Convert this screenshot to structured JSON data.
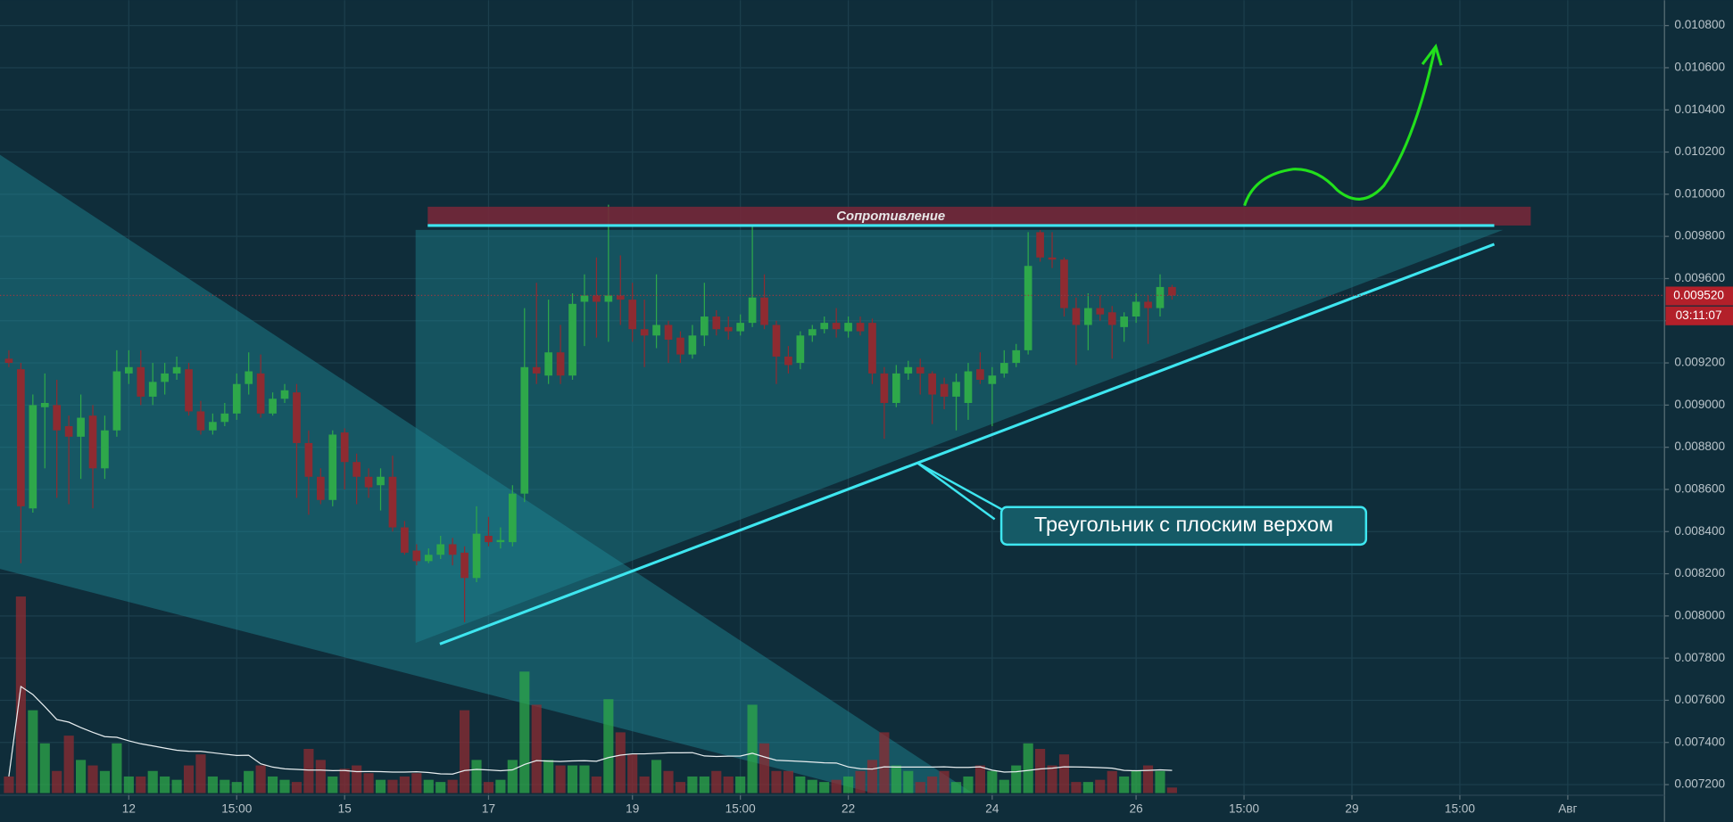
{
  "chart_data": {
    "type": "candlestick",
    "up_color": "#2ea84a",
    "down_color": "#8e2b31",
    "ylim": [
      0.00716,
      0.01092
    ],
    "yticks": [
      {
        "value": 0.0072,
        "label": "0.007200"
      },
      {
        "value": 0.0074,
        "label": "0.007400"
      },
      {
        "value": 0.0076,
        "label": "0.007600"
      },
      {
        "value": 0.0078,
        "label": "0.007800"
      },
      {
        "value": 0.008,
        "label": "0.008000"
      },
      {
        "value": 0.0082,
        "label": "0.008200"
      },
      {
        "value": 0.0084,
        "label": "0.008400"
      },
      {
        "value": 0.0086,
        "label": "0.008600"
      },
      {
        "value": 0.0088,
        "label": "0.008800"
      },
      {
        "value": 0.009,
        "label": "0.009000"
      },
      {
        "value": 0.0092,
        "label": "0.009200"
      },
      {
        "value": 0.0094,
        "label": "0.009400"
      },
      {
        "value": 0.0096,
        "label": "0.009600"
      },
      {
        "value": 0.0098,
        "label": "0.009800"
      },
      {
        "value": 0.01,
        "label": "0.010000"
      },
      {
        "value": 0.0102,
        "label": "0.010200"
      },
      {
        "value": 0.0104,
        "label": "0.010400"
      },
      {
        "value": 0.0106,
        "label": "0.010600"
      },
      {
        "value": 0.0108,
        "label": "0.010800"
      }
    ],
    "xlim": [
      -0.74,
      137.97
    ],
    "xticks": [
      {
        "value": 10,
        "label": "12"
      },
      {
        "value": 19,
        "label": "15:00"
      },
      {
        "value": 28,
        "label": "15"
      },
      {
        "value": 40,
        "label": "17"
      },
      {
        "value": 52,
        "label": "19"
      },
      {
        "value": 61,
        "label": "15:00"
      },
      {
        "value": 70,
        "label": "22"
      },
      {
        "value": 82,
        "label": "24"
      },
      {
        "value": 94,
        "label": "26"
      },
      {
        "value": 103,
        "label": "15:00"
      },
      {
        "value": 112,
        "label": "29"
      },
      {
        "value": 121,
        "label": "15:00"
      },
      {
        "value": 130,
        "label": "Авг"
      }
    ],
    "grid": true,
    "open": [
      0.00922,
      0.00917,
      0.00851,
      0.00899,
      0.009,
      0.0089,
      0.00885,
      0.00895,
      0.0087,
      0.00888,
      0.00915,
      0.00918,
      0.00904,
      0.00911,
      0.00915,
      0.00917,
      0.00897,
      0.00888,
      0.00892,
      0.00896,
      0.0091,
      0.00915,
      0.00896,
      0.00903,
      0.00906,
      0.00882,
      0.00866,
      0.00855,
      0.00887,
      0.00873,
      0.00866,
      0.00862,
      0.00866,
      0.00842,
      0.00831,
      0.00826,
      0.00829,
      0.00834,
      0.0083,
      0.00818,
      0.00838,
      0.00835,
      0.00835,
      0.00858,
      0.00918,
      0.00914,
      0.00925,
      0.00914,
      0.00949,
      0.00952,
      0.00949,
      0.00952,
      0.0095,
      0.00936,
      0.00933,
      0.00938,
      0.00932,
      0.00924,
      0.00933,
      0.00942,
      0.00937,
      0.00935,
      0.00939,
      0.00951,
      0.00938,
      0.00923,
      0.0092,
      0.00933,
      0.00936,
      0.00939,
      0.00935,
      0.00939,
      0.00939,
      0.00915,
      0.00901,
      0.00915,
      0.00918,
      0.00915,
      0.0091,
      0.00904,
      0.00901,
      0.00917,
      0.0091,
      0.00915,
      0.0092,
      0.00926,
      0.00982,
      0.0097,
      0.00969,
      0.00946,
      0.00938,
      0.00946,
      0.00944,
      0.00937,
      0.00942,
      0.00949,
      0.00946,
      0.00956
    ],
    "high": [
      0.00926,
      0.0092,
      0.00905,
      0.00915,
      0.00912,
      0.00895,
      0.00905,
      0.009,
      0.00895,
      0.00926,
      0.00926,
      0.00926,
      0.0092,
      0.0092,
      0.00923,
      0.0092,
      0.00902,
      0.00896,
      0.00901,
      0.00915,
      0.00925,
      0.00924,
      0.00906,
      0.0091,
      0.0091,
      0.00888,
      0.0087,
      0.00888,
      0.00889,
      0.00877,
      0.0087,
      0.0087,
      0.00876,
      0.00845,
      0.00834,
      0.00832,
      0.00838,
      0.00837,
      0.00833,
      0.00852,
      0.00847,
      0.00842,
      0.00862,
      0.00946,
      0.00958,
      0.0095,
      0.00938,
      0.00953,
      0.00962,
      0.0097,
      0.00995,
      0.00971,
      0.00958,
      0.0095,
      0.00962,
      0.0094,
      0.00935,
      0.00938,
      0.00958,
      0.00945,
      0.00942,
      0.00943,
      0.00985,
      0.00962,
      0.0094,
      0.00928,
      0.00935,
      0.00938,
      0.00942,
      0.00946,
      0.00942,
      0.00942,
      0.00941,
      0.00918,
      0.00919,
      0.00921,
      0.00922,
      0.00916,
      0.00913,
      0.00915,
      0.0092,
      0.00925,
      0.00918,
      0.00926,
      0.00929,
      0.00982,
      0.00983,
      0.00982,
      0.0097,
      0.00951,
      0.00953,
      0.00952,
      0.00947,
      0.00944,
      0.00953,
      0.00952,
      0.00962,
      0.00957
    ],
    "low": [
      0.00918,
      0.00825,
      0.00849,
      0.0087,
      0.00856,
      0.00853,
      0.00865,
      0.00851,
      0.00865,
      0.00885,
      0.0091,
      0.009,
      0.009,
      0.00905,
      0.00912,
      0.00895,
      0.00886,
      0.00886,
      0.0089,
      0.00893,
      0.00905,
      0.00894,
      0.00895,
      0.00901,
      0.00856,
      0.00848,
      0.00853,
      0.00852,
      0.0086,
      0.00853,
      0.00856,
      0.0085,
      0.0084,
      0.00829,
      0.00824,
      0.00825,
      0.00827,
      0.00824,
      0.00797,
      0.00816,
      0.00833,
      0.00832,
      0.00833,
      0.00854,
      0.0091,
      0.0091,
      0.0091,
      0.00912,
      0.00928,
      0.00932,
      0.0093,
      0.00938,
      0.0093,
      0.00918,
      0.00927,
      0.0092,
      0.0092,
      0.00922,
      0.00928,
      0.00933,
      0.00931,
      0.00933,
      0.00937,
      0.00936,
      0.0091,
      0.00915,
      0.00917,
      0.0093,
      0.00934,
      0.00932,
      0.00932,
      0.00933,
      0.0091,
      0.00884,
      0.00899,
      0.00912,
      0.00905,
      0.00891,
      0.00898,
      0.00888,
      0.00893,
      0.0091,
      0.0089,
      0.00913,
      0.00918,
      0.00924,
      0.00968,
      0.00965,
      0.00942,
      0.00919,
      0.00926,
      0.0094,
      0.00922,
      0.0093,
      0.00939,
      0.00929,
      0.00942,
      0.0095
    ],
    "close": [
      0.0092,
      0.00852,
      0.009,
      0.00901,
      0.00888,
      0.00885,
      0.00894,
      0.0087,
      0.00888,
      0.00916,
      0.00918,
      0.00904,
      0.00911,
      0.00915,
      0.00918,
      0.00897,
      0.00888,
      0.00892,
      0.00896,
      0.0091,
      0.00916,
      0.00896,
      0.00903,
      0.00907,
      0.00882,
      0.00866,
      0.00855,
      0.00886,
      0.00873,
      0.00866,
      0.00861,
      0.00866,
      0.00842,
      0.0083,
      0.00826,
      0.00829,
      0.00834,
      0.00829,
      0.00818,
      0.00839,
      0.00835,
      0.00836,
      0.00858,
      0.00918,
      0.00915,
      0.00925,
      0.00914,
      0.00948,
      0.00952,
      0.00949,
      0.00952,
      0.0095,
      0.00936,
      0.00933,
      0.00938,
      0.00931,
      0.00924,
      0.00933,
      0.00942,
      0.00936,
      0.00935,
      0.00939,
      0.00951,
      0.00938,
      0.00923,
      0.00919,
      0.00933,
      0.00936,
      0.00939,
      0.00936,
      0.00939,
      0.00935,
      0.00915,
      0.00901,
      0.00915,
      0.00918,
      0.00915,
      0.00905,
      0.00904,
      0.00911,
      0.00916,
      0.00912,
      0.00914,
      0.0092,
      0.00926,
      0.00966,
      0.0097,
      0.00969,
      0.00946,
      0.00938,
      0.00946,
      0.00943,
      0.00938,
      0.00942,
      0.00949,
      0.00946,
      0.00956,
      0.00952
    ],
    "volume": [
      15,
      178,
      75,
      45,
      20,
      52,
      30,
      25,
      20,
      45,
      15,
      15,
      20,
      15,
      12,
      25,
      35,
      15,
      12,
      10,
      20,
      25,
      15,
      12,
      10,
      40,
      30,
      15,
      22,
      25,
      18,
      12,
      12,
      15,
      18,
      12,
      10,
      12,
      75,
      30,
      10,
      12,
      30,
      110,
      80,
      30,
      25,
      25,
      25,
      15,
      85,
      55,
      35,
      15,
      30,
      20,
      10,
      15,
      15,
      20,
      15,
      15,
      80,
      45,
      20,
      20,
      15,
      12,
      10,
      12,
      15,
      20,
      30,
      55,
      25,
      20,
      10,
      15,
      20,
      10,
      15,
      25,
      20,
      12,
      25,
      45,
      40,
      25,
      35,
      10,
      10,
      12,
      20,
      15,
      20,
      25,
      20,
      5
    ],
    "last_price": {
      "value": 0.00952,
      "label": "0.009520"
    },
    "countdown": "03:11:07",
    "resistance_label": "Сопротивление",
    "pattern_label": "Треугольник с плоским верхом"
  }
}
